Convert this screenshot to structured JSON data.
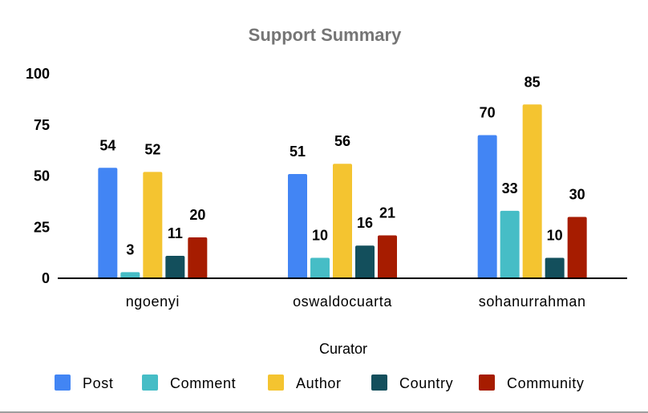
{
  "chart_data": {
    "type": "bar",
    "title": "Support Summary",
    "xlabel": "Curator",
    "ylabel": "",
    "ylim": [
      0,
      100
    ],
    "yticks": [
      0,
      25,
      50,
      75,
      100
    ],
    "grid": false,
    "legend_position": "bottom",
    "categories": [
      "ngoenyi",
      "oswaldocuarta",
      "sohanurrahman"
    ],
    "series": [
      {
        "name": "Post",
        "color": "#4285f4",
        "values": [
          54,
          51,
          70
        ]
      },
      {
        "name": "Comment",
        "color": "#46bdc6",
        "values": [
          3,
          10,
          33
        ]
      },
      {
        "name": "Author",
        "color": "#f4c430",
        "values": [
          52,
          56,
          85
        ]
      },
      {
        "name": "Country",
        "color": "#134f5c",
        "values": [
          11,
          16,
          10
        ]
      },
      {
        "name": "Community",
        "color": "#a61c00",
        "values": [
          20,
          21,
          30
        ]
      }
    ]
  }
}
